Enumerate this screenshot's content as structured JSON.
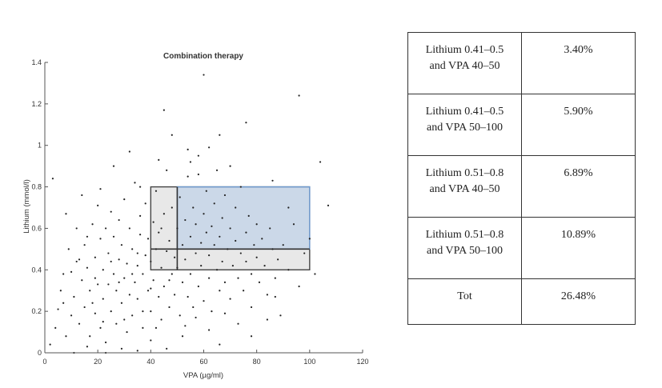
{
  "chart_data": {
    "type": "scatter",
    "title": "Combination therapy",
    "xlabel": "VPA (µg/ml)",
    "ylabel": "Lithium (mmol/l)",
    "xlim": [
      0,
      120
    ],
    "ylim": [
      0,
      1.4
    ],
    "xticks": [
      "0",
      "20",
      "40",
      "60",
      "80",
      "100",
      "120"
    ],
    "yticks": [
      "0",
      "0.2",
      "0.4",
      "0.6",
      "0.8",
      "1",
      "1.2",
      "1.4"
    ],
    "grid": false,
    "point_color": "#222222",
    "highlight_regions": [
      {
        "x_range": [
          40,
          100
        ],
        "y_range": [
          0.4,
          0.8
        ],
        "color": "#bdbdbd"
      },
      {
        "x_range": [
          50,
          100
        ],
        "y_range": [
          0.5,
          0.8
        ],
        "color": "#a9c6e8"
      }
    ],
    "points": [
      [
        2,
        0.04
      ],
      [
        4,
        0.12
      ],
      [
        5,
        0.21
      ],
      [
        6,
        0.3
      ],
      [
        7,
        0.38
      ],
      [
        8,
        0.08
      ],
      [
        9,
        0.5
      ],
      [
        10,
        0.18
      ],
      [
        11,
        0.27
      ],
      [
        12,
        0.44
      ],
      [
        12,
        0.6
      ],
      [
        13,
        0.14
      ],
      [
        14,
        0.35
      ],
      [
        15,
        0.22
      ],
      [
        15,
        0.52
      ],
      [
        16,
        0.41
      ],
      [
        17,
        0.08
      ],
      [
        17,
        0.3
      ],
      [
        18,
        0.62
      ],
      [
        19,
        0.19
      ],
      [
        19,
        0.46
      ],
      [
        20,
        0.33
      ],
      [
        20,
        0.71
      ],
      [
        21,
        0.12
      ],
      [
        21,
        0.55
      ],
      [
        22,
        0.26
      ],
      [
        22,
        0.4
      ],
      [
        23,
        0.6
      ],
      [
        23,
        0.05
      ],
      [
        24,
        0.33
      ],
      [
        24,
        0.48
      ],
      [
        25,
        0.2
      ],
      [
        25,
        0.68
      ],
      [
        26,
        0.38
      ],
      [
        26,
        0.56
      ],
      [
        27,
        0.14
      ],
      [
        27,
        0.3
      ],
      [
        28,
        0.45
      ],
      [
        28,
        0.64
      ],
      [
        29,
        0.24
      ],
      [
        29,
        0.52
      ],
      [
        30,
        0.36
      ],
      [
        30,
        0.74
      ],
      [
        31,
        0.1
      ],
      [
        31,
        0.43
      ],
      [
        32,
        0.28
      ],
      [
        32,
        0.6
      ],
      [
        33,
        0.5
      ],
      [
        33,
        0.18
      ],
      [
        34,
        0.34
      ],
      [
        34,
        0.82
      ],
      [
        35,
        0.42
      ],
      [
        35,
        0.26
      ],
      [
        36,
        0.57
      ],
      [
        36,
        0.66
      ],
      [
        37,
        0.12
      ],
      [
        37,
        0.38
      ],
      [
        38,
        0.47
      ],
      [
        38,
        0.72
      ],
      [
        39,
        0.3
      ],
      [
        39,
        0.55
      ],
      [
        40,
        0.2
      ],
      [
        40,
        0.44
      ],
      [
        41,
        0.63
      ],
      [
        41,
        0.35
      ],
      [
        42,
        0.5
      ],
      [
        42,
        0.78
      ],
      [
        43,
        0.27
      ],
      [
        43,
        0.58
      ],
      [
        44,
        0.41
      ],
      [
        44,
        0.16
      ],
      [
        45,
        0.67
      ],
      [
        45,
        0.32
      ],
      [
        46,
        0.49
      ],
      [
        46,
        0.88
      ],
      [
        47,
        0.22
      ],
      [
        47,
        0.54
      ],
      [
        48,
        0.38
      ],
      [
        48,
        0.7
      ],
      [
        49,
        0.46
      ],
      [
        49,
        0.28
      ],
      [
        50,
        0.6
      ],
      [
        50,
        0.41
      ],
      [
        51,
        0.75
      ],
      [
        51,
        0.18
      ],
      [
        52,
        0.52
      ],
      [
        52,
        0.34
      ],
      [
        53,
        0.64
      ],
      [
        53,
        0.45
      ],
      [
        54,
        0.27
      ],
      [
        54,
        0.85
      ],
      [
        55,
        0.56
      ],
      [
        55,
        0.38
      ],
      [
        56,
        0.7
      ],
      [
        56,
        0.22
      ],
      [
        57,
        0.48
      ],
      [
        57,
        0.62
      ],
      [
        58,
        0.32
      ],
      [
        58,
        0.95
      ],
      [
        59,
        0.53
      ],
      [
        59,
        0.42
      ],
      [
        60,
        0.67
      ],
      [
        60,
        0.25
      ],
      [
        61,
        0.58
      ],
      [
        61,
        0.78
      ],
      [
        62,
        0.36
      ],
      [
        62,
        0.47
      ],
      [
        63,
        0.61
      ],
      [
        63,
        0.2
      ],
      [
        64,
        0.52
      ],
      [
        64,
        0.72
      ],
      [
        65,
        0.4
      ],
      [
        65,
        0.88
      ],
      [
        66,
        0.3
      ],
      [
        66,
        0.56
      ],
      [
        67,
        0.65
      ],
      [
        67,
        0.44
      ],
      [
        68,
        0.34
      ],
      [
        68,
        0.76
      ],
      [
        69,
        0.5
      ],
      [
        70,
        0.6
      ],
      [
        70,
        0.26
      ],
      [
        71,
        0.42
      ],
      [
        72,
        0.7
      ],
      [
        72,
        0.54
      ],
      [
        73,
        0.36
      ],
      [
        74,
        0.48
      ],
      [
        74,
        0.8
      ],
      [
        75,
        0.3
      ],
      [
        76,
        0.58
      ],
      [
        76,
        0.44
      ],
      [
        77,
        0.66
      ],
      [
        78,
        0.38
      ],
      [
        78,
        0.22
      ],
      [
        79,
        0.52
      ],
      [
        80,
        0.46
      ],
      [
        80,
        0.62
      ],
      [
        81,
        0.34
      ],
      [
        82,
        0.55
      ],
      [
        83,
        0.42
      ],
      [
        84,
        0.28
      ],
      [
        85,
        0.6
      ],
      [
        86,
        0.5
      ],
      [
        87,
        0.36
      ],
      [
        88,
        0.45
      ],
      [
        89,
        0.18
      ],
      [
        90,
        0.52
      ],
      [
        92,
        0.4
      ],
      [
        94,
        0.62
      ],
      [
        96,
        0.32
      ],
      [
        98,
        0.48
      ],
      [
        100,
        0.55
      ],
      [
        102,
        0.38
      ],
      [
        104,
        0.92
      ],
      [
        107,
        0.71
      ],
      [
        60,
        1.34
      ],
      [
        96,
        1.24
      ],
      [
        45,
        1.17
      ],
      [
        76,
        1.11
      ],
      [
        62,
        0.99
      ],
      [
        54,
        0.98
      ],
      [
        32,
        0.97
      ],
      [
        66,
        1.05
      ],
      [
        3,
        0.84
      ],
      [
        8,
        0.67
      ],
      [
        14,
        0.76
      ],
      [
        36,
        0.8
      ],
      [
        43,
        0.93
      ],
      [
        70,
        0.9
      ],
      [
        58,
        0.86
      ],
      [
        26,
        0.9
      ],
      [
        21,
        0.79
      ],
      [
        48,
        1.05
      ],
      [
        55,
        0.92
      ],
      [
        86,
        0.83
      ],
      [
        92,
        0.7
      ],
      [
        29,
        0.02
      ],
      [
        35,
        0.01
      ],
      [
        46,
        0.02
      ],
      [
        16,
        0.03
      ],
      [
        66,
        0.04
      ],
      [
        52,
        0.08
      ],
      [
        40,
        0.06
      ],
      [
        23,
        0.0
      ],
      [
        11,
        0.0
      ],
      [
        30,
        0.16
      ],
      [
        37,
        0.2
      ],
      [
        42,
        0.12
      ],
      [
        19,
        0.36
      ],
      [
        13,
        0.45
      ],
      [
        25,
        0.44
      ],
      [
        33,
        0.38
      ],
      [
        28,
        0.34
      ],
      [
        22,
        0.15
      ],
      [
        18,
        0.24
      ],
      [
        16,
        0.56
      ],
      [
        10,
        0.39
      ],
      [
        7,
        0.24
      ],
      [
        35,
        0.48
      ],
      [
        40,
        0.31
      ],
      [
        44,
        0.6
      ],
      [
        47,
        0.35
      ],
      [
        53,
        0.13
      ],
      [
        57,
        0.17
      ],
      [
        62,
        0.11
      ],
      [
        68,
        0.19
      ],
      [
        73,
        0.14
      ],
      [
        78,
        0.08
      ],
      [
        84,
        0.16
      ],
      [
        87,
        0.27
      ]
    ]
  },
  "table": {
    "rows": [
      {
        "label": "Lithium 0.41–0.5\nand VPA 40–50",
        "value": "3.40%"
      },
      {
        "label": "Lithium 0.41–0.5\nand VPA 50–100",
        "value": "5.90%"
      },
      {
        "label": "Lithium 0.51–0.8\nand VPA 40–50",
        "value": "6.89%"
      },
      {
        "label": "Lithium 0.51–0.8\nand VPA 50–100",
        "value": "10.89%"
      },
      {
        "label": "Tot",
        "value": "26.48%"
      }
    ]
  }
}
